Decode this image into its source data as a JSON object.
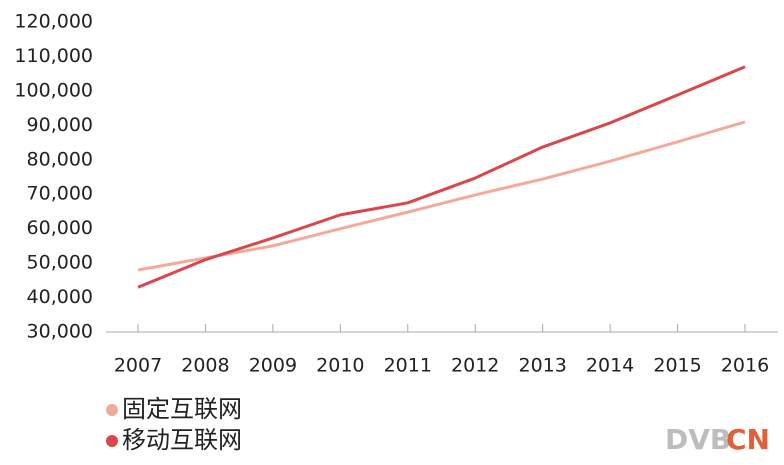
{
  "chart_data": {
    "type": "line",
    "categories": [
      "2007",
      "2008",
      "2009",
      "2010",
      "2011",
      "2012",
      "2013",
      "2014",
      "2015",
      "2016"
    ],
    "series": [
      {
        "name": "固定互联网",
        "color": "#f2aa9a",
        "values": [
          48000,
          51500,
          55000,
          60000,
          64800,
          69800,
          74400,
          79600,
          85200,
          91000
        ]
      },
      {
        "name": "移动互联网",
        "color": "#d9474a",
        "values": [
          43000,
          51000,
          57300,
          64000,
          67500,
          74700,
          83700,
          90700,
          98800,
          107000
        ]
      }
    ],
    "ylim": [
      30000,
      120000
    ],
    "yticks": [
      {
        "value": 30000,
        "label": "30,000"
      },
      {
        "value": 40000,
        "label": "40,000"
      },
      {
        "value": 50000,
        "label": "50,000"
      },
      {
        "value": 60000,
        "label": "60,000"
      },
      {
        "value": 70000,
        "label": "70,000"
      },
      {
        "value": 80000,
        "label": "80,000"
      },
      {
        "value": 90000,
        "label": "90,000"
      },
      {
        "value": 100000,
        "label": "100,000"
      },
      {
        "value": 110000,
        "label": "110,000"
      },
      {
        "value": 120000,
        "label": "120,000"
      }
    ],
    "grid": false,
    "watermark": [
      "DVB",
      "CN"
    ]
  }
}
